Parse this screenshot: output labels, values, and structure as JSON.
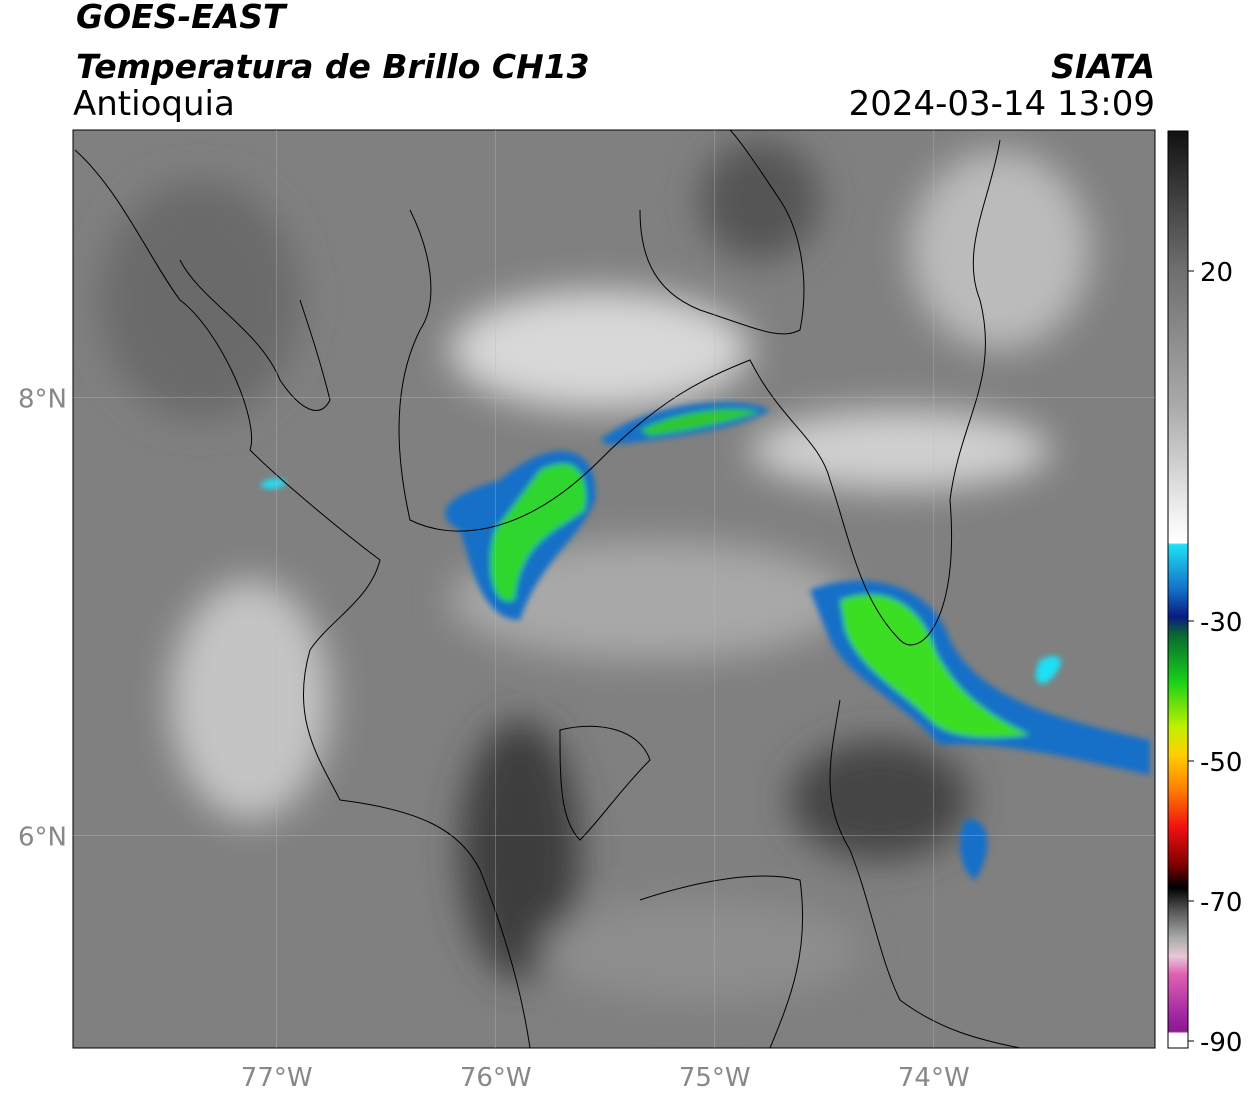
{
  "header": {
    "title": "GOES-EAST",
    "subtitle": "Temperatura de Brillo CH13",
    "region": "Antioquia",
    "source": "SIATA",
    "datetime": "2024-03-14 13:09"
  },
  "chart_data": {
    "type": "map",
    "xlim": [
      -77.93,
      -72.99
    ],
    "ylim": [
      5.03,
      9.22
    ],
    "xticks": [
      {
        "value": -77,
        "label": "77°W"
      },
      {
        "value": -76,
        "label": "76°W"
      },
      {
        "value": -75,
        "label": "75°W"
      },
      {
        "value": -74,
        "label": "74°W"
      }
    ],
    "yticks": [
      {
        "value": 8,
        "label": "8°N"
      },
      {
        "value": 6,
        "label": "6°N"
      }
    ],
    "grid": true,
    "colorbar": {
      "clim": [
        -91,
        40
      ],
      "ticks": [
        20,
        -30,
        -50,
        -70,
        -90
      ]
    }
  }
}
